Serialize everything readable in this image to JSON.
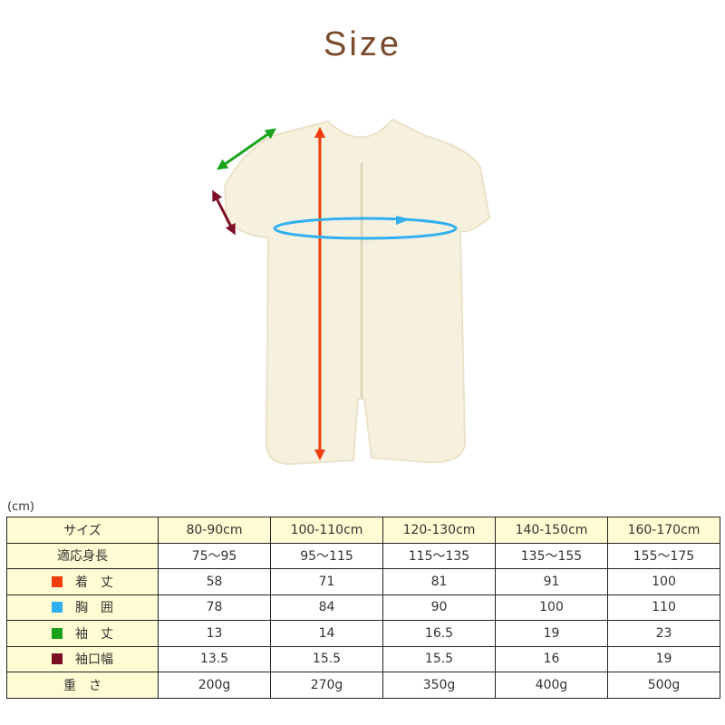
{
  "title": "Size",
  "unit": "(cm)",
  "colors": {
    "length": "#f03c0a",
    "chest": "#30b0f0",
    "sleeve_length": "#1aa31a",
    "cuff_width": "#7d0f25",
    "header_bg": "#fffbd2"
  },
  "table": {
    "header": {
      "label": "サイズ",
      "cols": [
        "80-90cm",
        "100-110cm",
        "120-130cm",
        "140-150cm",
        "160-170cm"
      ]
    },
    "rows": [
      {
        "label": "適応身長",
        "values": [
          "75〜95",
          "95〜115",
          "115〜135",
          "135〜155",
          "155〜175"
        ]
      },
      {
        "label": "着　丈",
        "color": "#f03c0a",
        "values": [
          "58",
          "71",
          "81",
          "91",
          "100"
        ]
      },
      {
        "label": "胸　囲",
        "color": "#30b0f0",
        "values": [
          "78",
          "84",
          "90",
          "100",
          "110"
        ]
      },
      {
        "label": "袖　丈",
        "color": "#1aa31a",
        "values": [
          "13",
          "14",
          "16.5",
          "19",
          "23"
        ]
      },
      {
        "label": "袖口幅",
        "color": "#7d0f25",
        "values": [
          "13.5",
          "15.5",
          "15.5",
          "16",
          "19"
        ]
      },
      {
        "label": "重　さ",
        "values": [
          "200g",
          "270g",
          "350g",
          "400g",
          "500g"
        ]
      }
    ]
  }
}
